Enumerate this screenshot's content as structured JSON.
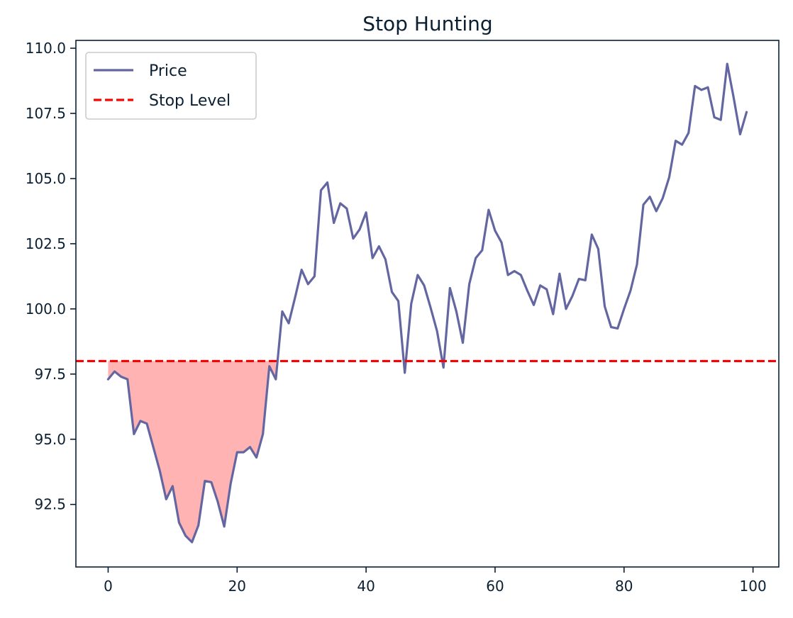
{
  "chart_data": {
    "type": "line",
    "title": "Stop Hunting",
    "xlabel": "",
    "ylabel": "",
    "xlim": [
      -5,
      104
    ],
    "ylim": [
      90.1,
      110.3
    ],
    "x_ticks": [
      0,
      20,
      40,
      60,
      80,
      100
    ],
    "x_tick_labels": [
      "0",
      "20",
      "40",
      "60",
      "80",
      "100"
    ],
    "y_ticks": [
      92.5,
      95.0,
      97.5,
      100.0,
      102.5,
      105.0,
      107.5,
      110.0
    ],
    "y_tick_labels": [
      "92.5",
      "95.0",
      "97.5",
      "100.0",
      "102.5",
      "105.0",
      "107.5",
      "110.0"
    ],
    "grid": false,
    "legend": "upper-left",
    "legend_entries": [
      "Price",
      "Stop Level"
    ],
    "colors": {
      "price": "#6366a0",
      "stop": "#ff0000",
      "fill": "#ffb3b3",
      "axes": "#0b1f33"
    },
    "series": [
      {
        "name": "Price",
        "x": [
          0,
          1,
          2,
          3,
          4,
          5,
          6,
          7,
          8,
          9,
          10,
          11,
          12,
          13,
          14,
          15,
          16,
          17,
          18,
          19,
          20,
          21,
          22,
          23,
          24,
          25,
          26,
          27,
          28,
          29,
          30,
          31,
          32,
          33,
          34,
          35,
          36,
          37,
          38,
          39,
          40,
          41,
          42,
          43,
          44,
          45,
          46,
          47,
          48,
          49,
          50,
          51,
          52,
          53,
          54,
          55,
          56,
          57,
          58,
          59,
          60,
          61,
          62,
          63,
          64,
          65,
          66,
          67,
          68,
          69,
          70,
          71,
          72,
          73,
          74,
          75,
          76,
          77,
          78,
          79,
          80,
          81,
          82,
          83,
          84,
          85,
          86,
          87,
          88,
          89,
          90,
          91,
          92,
          93,
          94,
          95,
          96,
          97,
          98,
          99
        ],
        "values": [
          97.3,
          97.6,
          97.4,
          97.3,
          95.2,
          95.7,
          95.6,
          94.7,
          93.8,
          92.7,
          93.2,
          91.8,
          91.3,
          91.05,
          91.7,
          93.4,
          93.35,
          92.6,
          91.65,
          93.3,
          94.5,
          94.5,
          94.7,
          94.3,
          95.2,
          97.8,
          97.3,
          99.9,
          99.45,
          100.45,
          101.5,
          100.95,
          101.25,
          104.55,
          104.85,
          103.3,
          104.05,
          103.85,
          102.7,
          103.05,
          103.7,
          101.95,
          102.4,
          101.9,
          100.65,
          100.3,
          97.55,
          100.2,
          101.3,
          100.9,
          100.05,
          99.15,
          97.75,
          100.8,
          99.9,
          98.7,
          100.95,
          101.95,
          102.25,
          103.8,
          103.0,
          102.55,
          101.3,
          101.45,
          101.3,
          100.7,
          100.15,
          100.9,
          100.75,
          99.8,
          101.35,
          100.0,
          100.5,
          101.15,
          101.1,
          102.85,
          102.3,
          100.1,
          99.3,
          99.25,
          100.0,
          100.7,
          101.7,
          104.0,
          104.3,
          103.75,
          104.25,
          105.05,
          106.45,
          106.3,
          106.75,
          108.55,
          108.4,
          108.5,
          107.35,
          107.25,
          109.4,
          108.1,
          106.7,
          107.55
        ]
      },
      {
        "name": "Stop Level",
        "x": [
          -5,
          104
        ],
        "values": [
          98.0,
          98.0
        ]
      }
    ],
    "stop_level": 98.0
  }
}
